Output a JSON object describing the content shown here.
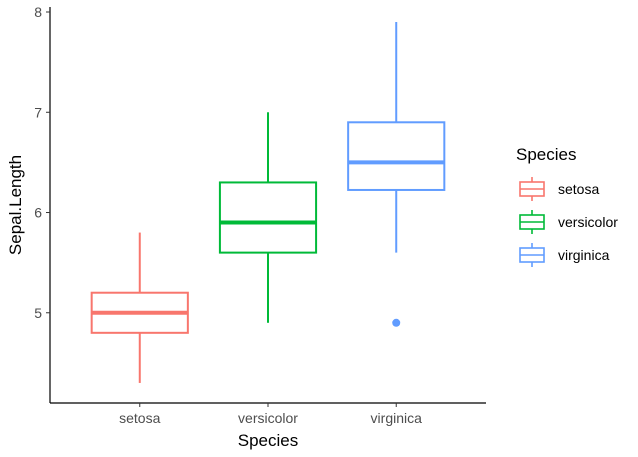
{
  "chart_data": {
    "type": "box",
    "xlabel": "Species",
    "ylabel": "Sepal.Length",
    "categories": [
      "setosa",
      "versicolor",
      "virginica"
    ],
    "ylim": [
      4.1,
      8.05
    ],
    "yticks": [
      "5",
      "6",
      "7",
      "8"
    ],
    "grid": false,
    "legend": {
      "title": "Species",
      "position": "right"
    },
    "series": [
      {
        "name": "setosa",
        "color": "#F8766D",
        "min": 4.3,
        "q1": 4.8,
        "median": 5.0,
        "q3": 5.2,
        "max": 5.8,
        "outliers": []
      },
      {
        "name": "versicolor",
        "color": "#00BA38",
        "min": 4.9,
        "q1": 5.6,
        "median": 5.9,
        "q3": 6.3,
        "max": 7.0,
        "outliers": []
      },
      {
        "name": "virginica",
        "color": "#619CFF",
        "min": 5.6,
        "q1": 6.225,
        "median": 6.5,
        "q3": 6.9,
        "max": 7.9,
        "outliers": [
          4.9
        ]
      }
    ]
  }
}
